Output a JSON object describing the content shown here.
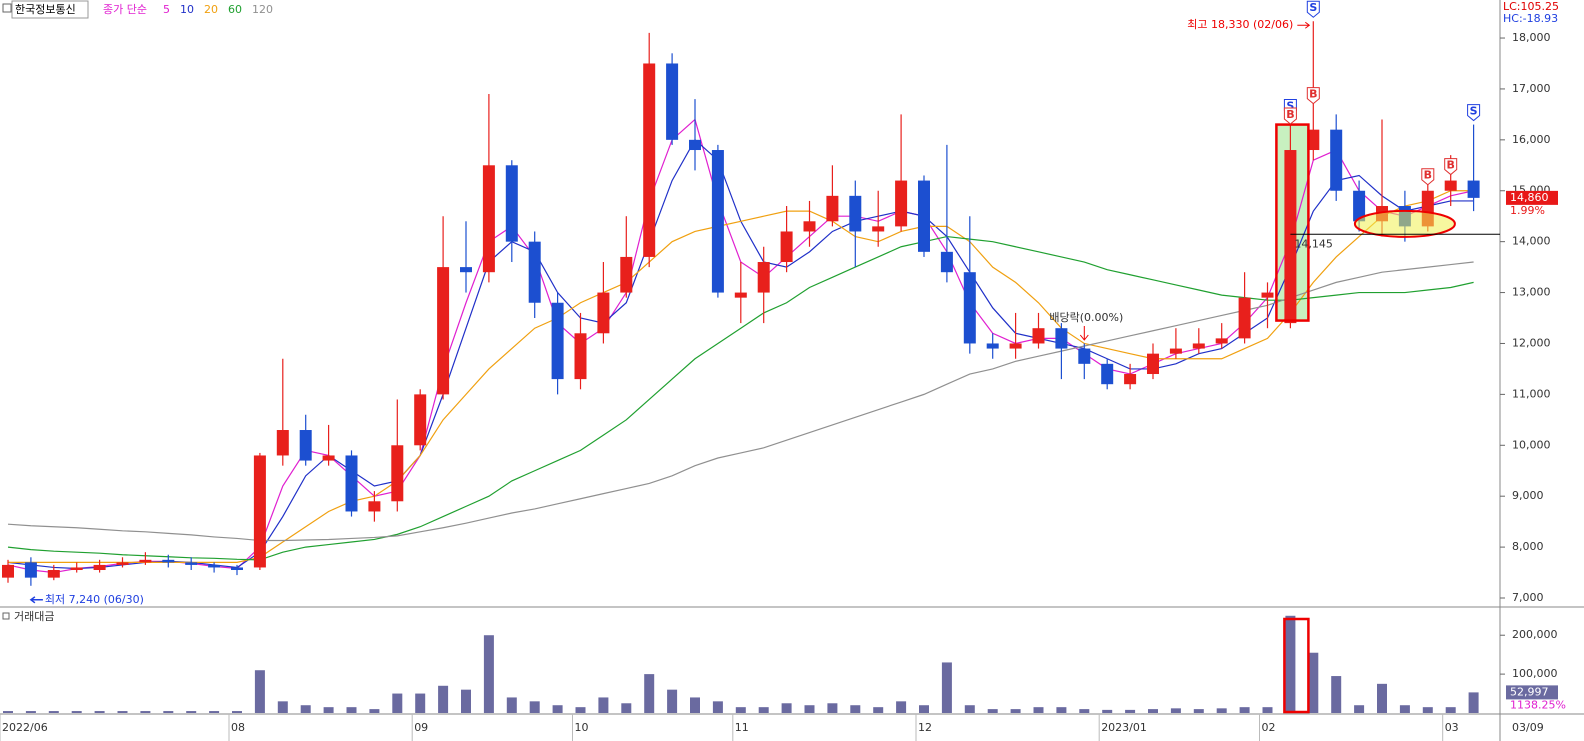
{
  "chart_data": {
    "type": "candlestick",
    "title": "한국정보통신",
    "legend_title": "종가 단순",
    "lc_label": "LC:105.25",
    "hc_label": "HC:-18.93",
    "categories": [
      "2022/06",
      null,
      null,
      null,
      null,
      null,
      null,
      null,
      null,
      null,
      "08",
      null,
      null,
      null,
      null,
      null,
      null,
      null,
      "09",
      null,
      null,
      null,
      null,
      null,
      null,
      "10",
      null,
      null,
      null,
      null,
      null,
      null,
      "11",
      null,
      null,
      null,
      null,
      null,
      null,
      null,
      "12",
      null,
      null,
      null,
      null,
      null,
      null,
      null,
      "2023/01",
      null,
      null,
      null,
      null,
      null,
      null,
      "02",
      null,
      null,
      null,
      null,
      null,
      null,
      null,
      "03",
      null
    ],
    "last_date": "03/09",
    "ohlc": [
      [
        7400,
        7750,
        7300,
        7650
      ],
      [
        7700,
        7800,
        7240,
        7400
      ],
      [
        7400,
        7650,
        7350,
        7550
      ],
      [
        7550,
        7700,
        7500,
        7600
      ],
      [
        7550,
        7750,
        7500,
        7650
      ],
      [
        7650,
        7800,
        7600,
        7700
      ],
      [
        7700,
        7900,
        7650,
        7750
      ],
      [
        7750,
        7850,
        7600,
        7700
      ],
      [
        7700,
        7800,
        7550,
        7650
      ],
      [
        7650,
        7700,
        7500,
        7600
      ],
      [
        7600,
        7650,
        7450,
        7550
      ],
      [
        7600,
        9850,
        7550,
        9800
      ],
      [
        9800,
        11700,
        9600,
        10300
      ],
      [
        10300,
        10600,
        9600,
        9700
      ],
      [
        9700,
        10400,
        9600,
        9800
      ],
      [
        9800,
        9900,
        8600,
        8700
      ],
      [
        8700,
        9100,
        8500,
        8900
      ],
      [
        8900,
        10900,
        8700,
        10000
      ],
      [
        10000,
        11100,
        9900,
        11000
      ],
      [
        11000,
        14500,
        10900,
        13500
      ],
      [
        13500,
        14400,
        13000,
        13400
      ],
      [
        13400,
        16900,
        13200,
        15500
      ],
      [
        15500,
        15600,
        13600,
        14000
      ],
      [
        14000,
        14200,
        12500,
        12800
      ],
      [
        12800,
        13000,
        11000,
        11300
      ],
      [
        11300,
        12600,
        11100,
        12200
      ],
      [
        12200,
        13600,
        12000,
        13000
      ],
      [
        13000,
        14500,
        12900,
        13700
      ],
      [
        13700,
        18100,
        13500,
        17500
      ],
      [
        17500,
        17700,
        15900,
        16000
      ],
      [
        16000,
        16800,
        15400,
        15800
      ],
      [
        15800,
        15900,
        12900,
        13000
      ],
      [
        12900,
        13600,
        12400,
        13000
      ],
      [
        13000,
        13900,
        12400,
        13600
      ],
      [
        13600,
        14700,
        13400,
        14200
      ],
      [
        14200,
        14800,
        13900,
        14400
      ],
      [
        14400,
        15500,
        14300,
        14900
      ],
      [
        14900,
        15200,
        13500,
        14200
      ],
      [
        14200,
        15000,
        13900,
        14300
      ],
      [
        14300,
        16500,
        14200,
        15200
      ],
      [
        15200,
        15300,
        13700,
        13800
      ],
      [
        13800,
        15900,
        13200,
        13400
      ],
      [
        13400,
        14500,
        11800,
        12000
      ],
      [
        12000,
        12200,
        11700,
        11900
      ],
      [
        11900,
        12600,
        11700,
        12000
      ],
      [
        12000,
        12600,
        11900,
        12300
      ],
      [
        12300,
        12400,
        11300,
        11900
      ],
      [
        11900,
        12000,
        11300,
        11600
      ],
      [
        11600,
        11700,
        11100,
        11200
      ],
      [
        11200,
        11600,
        11100,
        11400
      ],
      [
        11400,
        12000,
        11300,
        11800
      ],
      [
        11800,
        12300,
        11700,
        11900
      ],
      [
        11900,
        12300,
        11800,
        12000
      ],
      [
        12000,
        12400,
        11900,
        12100
      ],
      [
        12100,
        13400,
        12000,
        12900
      ],
      [
        12900,
        13200,
        12300,
        13000
      ],
      [
        12400,
        16400,
        12300,
        15800
      ],
      [
        15800,
        18330,
        15600,
        16200
      ],
      [
        16200,
        16500,
        14800,
        15000
      ],
      [
        15000,
        15200,
        14200,
        14400
      ],
      [
        14400,
        16400,
        14100,
        14700
      ],
      [
        14700,
        15000,
        14000,
        14300
      ],
      [
        14300,
        15400,
        14200,
        15000
      ],
      [
        15000,
        15700,
        14700,
        15200
      ],
      [
        15200,
        16300,
        14600,
        14860
      ]
    ],
    "up_color": "#e8201c",
    "down_color": "#1c4fd0",
    "ma": [
      {
        "name": "5",
        "color": "#e020d0",
        "values": [
          7650,
          7550,
          7500,
          7580,
          7620,
          7680,
          7720,
          7720,
          7680,
          7620,
          7580,
          8000,
          9200,
          9900,
          9800,
          9400,
          9000,
          9100,
          9800,
          11500,
          12800,
          14000,
          14300,
          13700,
          12400,
          12000,
          12300,
          13000,
          14800,
          16000,
          16400,
          14800,
          13600,
          13300,
          13700,
          14100,
          14500,
          14500,
          14400,
          14600,
          14500,
          13800,
          12800,
          12200,
          12000,
          12100,
          12100,
          11800,
          11500,
          11400,
          11600,
          11800,
          11900,
          12000,
          12400,
          12900,
          14000,
          15600,
          15800,
          15000,
          14600,
          14500,
          14700,
          14900,
          15000
        ]
      },
      {
        "name": "10",
        "color": "#2030c8",
        "values": [
          7700,
          7650,
          7600,
          7580,
          7600,
          7650,
          7700,
          7720,
          7700,
          7650,
          7600,
          7900,
          8600,
          9400,
          9800,
          9500,
          9200,
          9300,
          9800,
          11000,
          12300,
          13600,
          14000,
          13800,
          13000,
          12500,
          12400,
          12800,
          14000,
          15200,
          16000,
          15600,
          14400,
          13600,
          13500,
          13800,
          14200,
          14400,
          14500,
          14600,
          14500,
          14100,
          13400,
          12700,
          12200,
          12100,
          12000,
          11900,
          11700,
          11500,
          11500,
          11600,
          11800,
          11900,
          12200,
          12500,
          13500,
          14600,
          15200,
          15300,
          14900,
          14600,
          14700,
          14800,
          14800
        ]
      },
      {
        "name": "20",
        "color": "#f0a010",
        "values": [
          7700,
          7700,
          7700,
          7700,
          7700,
          7700,
          7700,
          7700,
          7700,
          7700,
          7700,
          7800,
          8100,
          8400,
          8700,
          8900,
          9000,
          9300,
          9800,
          10500,
          11000,
          11500,
          11900,
          12300,
          12500,
          12800,
          13000,
          13200,
          13600,
          14000,
          14200,
          14300,
          14400,
          14500,
          14600,
          14600,
          14400,
          14100,
          14000,
          14200,
          14300,
          14300,
          14000,
          13500,
          13200,
          12800,
          12300,
          12000,
          11900,
          11800,
          11700,
          11700,
          11700,
          11700,
          11900,
          12100,
          12600,
          13200,
          13700,
          14100,
          14500,
          14700,
          14800,
          15000,
          15000
        ]
      },
      {
        "name": "60",
        "color": "#20a030",
        "values": [
          8000,
          7950,
          7920,
          7900,
          7880,
          7850,
          7830,
          7810,
          7790,
          7780,
          7760,
          7750,
          7900,
          8000,
          8050,
          8100,
          8150,
          8250,
          8400,
          8600,
          8800,
          9000,
          9300,
          9500,
          9700,
          9900,
          10200,
          10500,
          10900,
          11300,
          11700,
          12000,
          12300,
          12600,
          12800,
          13100,
          13300,
          13500,
          13700,
          13900,
          14000,
          14100,
          14050,
          14000,
          13900,
          13800,
          13700,
          13600,
          13450,
          13350,
          13250,
          13150,
          13050,
          12950,
          12900,
          12850,
          12850,
          12900,
          12950,
          13000,
          13000,
          13000,
          13050,
          13100,
          13200
        ]
      },
      {
        "name": "120",
        "color": "#909090",
        "values": [
          8450,
          8420,
          8400,
          8380,
          8350,
          8320,
          8300,
          8270,
          8240,
          8200,
          8170,
          8130,
          8130,
          8140,
          8150,
          8170,
          8190,
          8220,
          8300,
          8380,
          8470,
          8570,
          8670,
          8750,
          8850,
          8950,
          9050,
          9150,
          9250,
          9400,
          9600,
          9750,
          9850,
          9950,
          10100,
          10250,
          10400,
          10550,
          10700,
          10850,
          11000,
          11200,
          11400,
          11500,
          11650,
          11750,
          11850,
          11950,
          12050,
          12150,
          12250,
          12350,
          12450,
          12550,
          12650,
          12750,
          12900,
          13050,
          13200,
          13300,
          13400,
          13450,
          13500,
          13550,
          13600
        ]
      }
    ],
    "ylim": [
      6843,
      18747
    ],
    "yticks": [
      {
        "value": 18000,
        "label": "18,000"
      },
      {
        "value": 17000,
        "label": "17,000"
      },
      {
        "value": 16000,
        "label": "16,000"
      },
      {
        "value": 15000,
        "label": "15,000"
      },
      {
        "value": 14000,
        "label": "14,000"
      },
      {
        "value": 13000,
        "label": "13,000"
      },
      {
        "value": 12000,
        "label": "12,000"
      },
      {
        "value": 11000,
        "label": "11,000"
      },
      {
        "value": 10000,
        "label": "10,000"
      },
      {
        "value": 9000,
        "label": "9,000"
      },
      {
        "value": 8000,
        "label": "8,000"
      },
      {
        "value": 7000,
        "label": "7,000"
      }
    ],
    "last_price": {
      "value": 14860,
      "label": "14,860"
    },
    "change_label": "1.99%",
    "max_note": {
      "value": 18330,
      "label": "최고 18,330 (02/06)"
    },
    "min_note": {
      "value": 7240,
      "label": "최저 7,240 (06/30)"
    },
    "dividend_note": "배당락(0.00%)",
    "support_line": {
      "value": 14145,
      "label": "14,145"
    },
    "signals": [
      {
        "label": "S",
        "candle": 57
      },
      {
        "label": "B",
        "candle": 57
      },
      {
        "label": "S",
        "candle": 56
      },
      {
        "label": "B",
        "candle": 56
      },
      {
        "label": "B",
        "candle": 62
      },
      {
        "label": "B",
        "candle": 63
      },
      {
        "label": "S",
        "candle": 64
      }
    ],
    "volume": {
      "title": "거래대금",
      "color": "#6a6aa0",
      "values": [
        5000,
        5000,
        5000,
        5000,
        5000,
        5000,
        5000,
        5000,
        5000,
        5000,
        5000,
        110000,
        30000,
        20000,
        15000,
        15000,
        10000,
        50000,
        50000,
        70000,
        60000,
        200000,
        40000,
        30000,
        20000,
        15000,
        40000,
        25000,
        100000,
        60000,
        40000,
        30000,
        15000,
        15000,
        25000,
        20000,
        25000,
        20000,
        15000,
        30000,
        20000,
        130000,
        20000,
        10000,
        10000,
        15000,
        15000,
        10000,
        8000,
        8000,
        10000,
        12000,
        10000,
        12000,
        15000,
        15000,
        250000,
        155000,
        95000,
        20000,
        75000,
        20000,
        15000,
        15000,
        52997
      ],
      "ylim": [
        0,
        270000
      ],
      "yticks": [
        {
          "value": 200000,
          "label": "200,000"
        },
        {
          "value": 100000,
          "label": "100,000"
        }
      ],
      "last_label": "52,997",
      "change_label": "1138.25%"
    }
  }
}
